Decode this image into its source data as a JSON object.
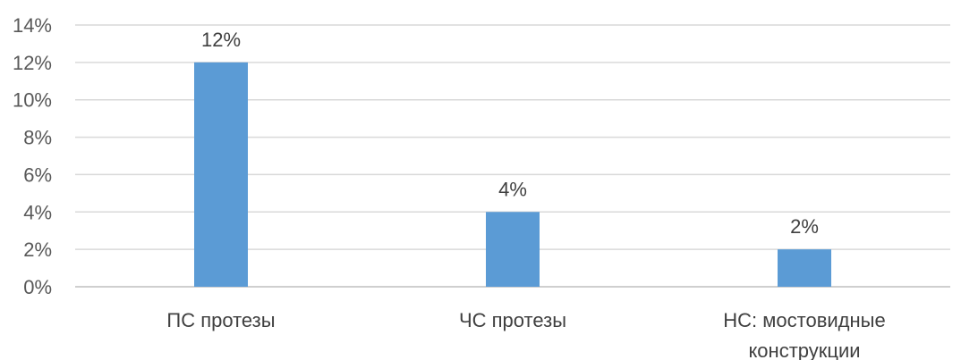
{
  "chart_data": {
    "type": "bar",
    "title": "",
    "xlabel": "",
    "ylabel": "",
    "categories": [
      "ПС протезы",
      "ЧС протезы",
      "НС:  мостовидные конструкции"
    ],
    "category_lines": [
      [
        "ПС протезы"
      ],
      [
        "ЧС протезы"
      ],
      [
        "НС:  мостовидные",
        "конструкции"
      ]
    ],
    "values": [
      12,
      4,
      2
    ],
    "data_labels": [
      "12%",
      "4%",
      "2%"
    ],
    "ylim": [
      0,
      14
    ],
    "y_ticks": [
      0,
      2,
      4,
      6,
      8,
      10,
      12,
      14
    ],
    "y_tick_labels": [
      "0%",
      "2%",
      "4%",
      "6%",
      "8%",
      "10%",
      "12%",
      "14%"
    ],
    "grid": true,
    "legend": "none",
    "colors": {
      "bar": "#5B9BD5",
      "grid": "#D9D9D9",
      "axis": "#BFBFBF"
    }
  }
}
